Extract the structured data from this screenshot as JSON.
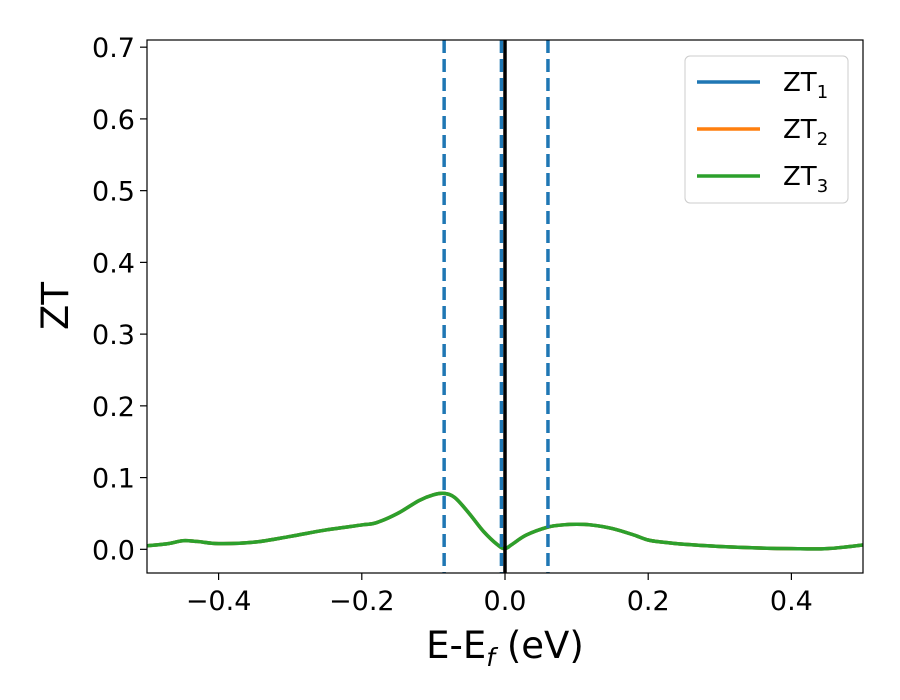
{
  "chart_data": {
    "type": "line",
    "title": "",
    "xlabel": "E-E",
    "xlabel_subscript": "f",
    "xlabel_unit": " (eV)",
    "ylabel": "ZT",
    "xlim": [
      -0.5,
      0.5
    ],
    "ylim": [
      -0.033,
      0.71
    ],
    "xticks": [
      -0.4,
      -0.2,
      0.0,
      0.2,
      0.4
    ],
    "xtick_labels": [
      "−0.4",
      "−0.2",
      "0.0",
      "0.2",
      "0.4"
    ],
    "yticks": [
      0.0,
      0.1,
      0.2,
      0.3,
      0.4,
      0.5,
      0.6,
      0.7
    ],
    "ytick_labels": [
      "0.0",
      "0.1",
      "0.2",
      "0.3",
      "0.4",
      "0.5",
      "0.6",
      "0.7"
    ],
    "grid": false,
    "legend_position": "top-right",
    "vertical_lines": [
      {
        "x": -0.085,
        "style": "dashed",
        "color": "#1f77b4"
      },
      {
        "x": -0.005,
        "style": "dashed",
        "color": "#1f77b4"
      },
      {
        "x": 0.06,
        "style": "dashed",
        "color": "#1f77b4"
      },
      {
        "x": 0.0,
        "style": "solid",
        "color": "#000000"
      }
    ],
    "x": [
      -0.5,
      -0.47,
      -0.45,
      -0.43,
      -0.4,
      -0.35,
      -0.3,
      -0.25,
      -0.2,
      -0.18,
      -0.15,
      -0.12,
      -0.1,
      -0.085,
      -0.07,
      -0.05,
      -0.03,
      -0.01,
      0.0,
      0.01,
      0.03,
      0.06,
      0.08,
      0.1,
      0.12,
      0.15,
      0.18,
      0.2,
      0.22,
      0.25,
      0.3,
      0.35,
      0.4,
      0.45,
      0.5
    ],
    "series": [
      {
        "name": "ZT",
        "name_subscript": "1",
        "color": "#1f77b4",
        "values": [
          0.005,
          0.008,
          0.012,
          0.011,
          0.008,
          0.01,
          0.018,
          0.027,
          0.034,
          0.037,
          0.05,
          0.068,
          0.076,
          0.078,
          0.072,
          0.05,
          0.025,
          0.006,
          0.001,
          0.007,
          0.02,
          0.031,
          0.034,
          0.035,
          0.034,
          0.029,
          0.02,
          0.013,
          0.01,
          0.007,
          0.004,
          0.002,
          0.001,
          0.001,
          0.006
        ]
      },
      {
        "name": "ZT",
        "name_subscript": "2",
        "color": "#ff7f0e",
        "values": [
          0.005,
          0.008,
          0.012,
          0.011,
          0.008,
          0.01,
          0.018,
          0.027,
          0.034,
          0.037,
          0.05,
          0.068,
          0.076,
          0.078,
          0.072,
          0.05,
          0.025,
          0.006,
          0.001,
          0.007,
          0.02,
          0.031,
          0.034,
          0.035,
          0.034,
          0.029,
          0.02,
          0.013,
          0.01,
          0.007,
          0.004,
          0.002,
          0.001,
          0.001,
          0.006
        ]
      },
      {
        "name": "ZT",
        "name_subscript": "3",
        "color": "#2ca02c",
        "values": [
          0.005,
          0.008,
          0.012,
          0.011,
          0.008,
          0.01,
          0.018,
          0.027,
          0.034,
          0.037,
          0.05,
          0.068,
          0.076,
          0.078,
          0.072,
          0.05,
          0.025,
          0.006,
          0.001,
          0.007,
          0.02,
          0.031,
          0.034,
          0.035,
          0.034,
          0.029,
          0.02,
          0.013,
          0.01,
          0.007,
          0.004,
          0.002,
          0.001,
          0.001,
          0.006
        ]
      }
    ]
  }
}
